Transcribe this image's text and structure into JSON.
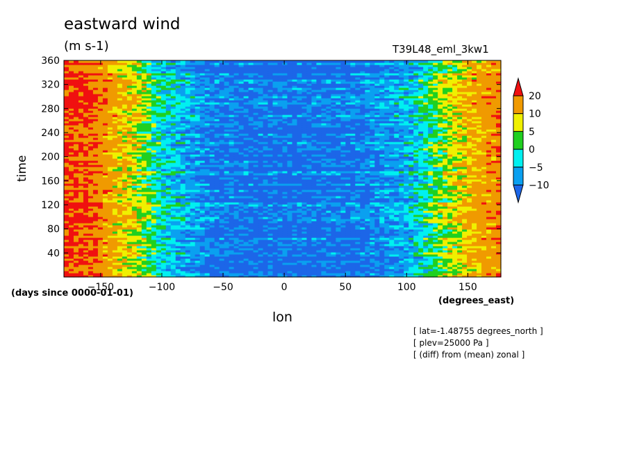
{
  "chart_data": {
    "type": "heatmap",
    "title": "eastward wind",
    "units": "(m s-1)",
    "run_name": "T39L48_eml_3kw1",
    "xlabel": "lon",
    "xunits": "(degrees_east)",
    "ylabel": "time",
    "yunits": "(days since 0000-01-01)",
    "xlim": [
      -180,
      177
    ],
    "ylim": [
      0,
      360
    ],
    "x_ticks": [
      -150,
      -100,
      -50,
      0,
      50,
      100,
      150
    ],
    "x_tick_labels": [
      "−150",
      "−100",
      "−50",
      "0",
      "50",
      "100",
      "150"
    ],
    "y_ticks": [
      40,
      80,
      120,
      160,
      200,
      240,
      280,
      320,
      360
    ],
    "y_tick_labels": [
      "40",
      "80",
      "120",
      "160",
      "200",
      "240",
      "280",
      "320",
      "360"
    ],
    "colorbar": {
      "levels": [
        -10,
        -5,
        0,
        5,
        10,
        20
      ],
      "labels": [
        "−10",
        "−5",
        "0",
        "5",
        "10",
        "20"
      ],
      "colors": [
        "#1c66e8",
        "#0aa0f0",
        "#00f0f0",
        "#20d020",
        "#f0f000",
        "#f09a00",
        "#f01010"
      ]
    },
    "approx_zonal_structure": {
      "description_lon": [
        -180,
        -160,
        -140,
        -120,
        -100,
        -60,
        0,
        60,
        100,
        120,
        140,
        160,
        177
      ],
      "mean_u": [
        22,
        20,
        12,
        6,
        -3,
        -11,
        -12,
        -11,
        -6,
        2,
        8,
        14,
        18
      ]
    },
    "notes": [
      "[ lat=-1.48755 degrees_north ]",
      "[ plev=25000 Pa ]",
      "[ (diff) from (mean) zonal ]"
    ]
  }
}
